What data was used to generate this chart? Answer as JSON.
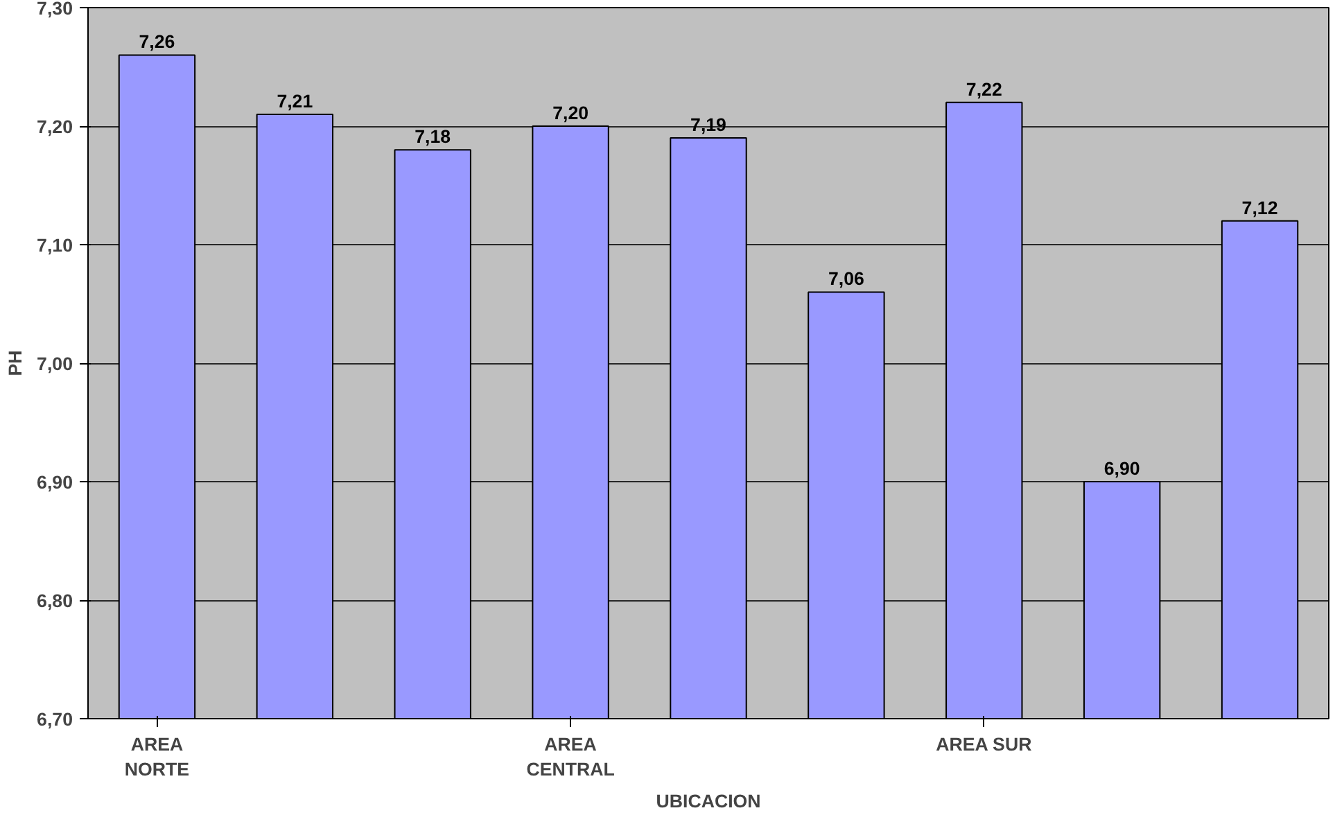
{
  "chart_data": {
    "type": "bar",
    "xlabel": "UBICACION",
    "ylabel": "PH",
    "categories": [
      "AREA NORTE",
      null,
      null,
      "AREA CENTRAL",
      null,
      null,
      "AREA SUR",
      null,
      null
    ],
    "values": [
      7.26,
      7.21,
      7.18,
      7.2,
      7.19,
      7.06,
      7.22,
      6.9,
      7.12
    ],
    "value_labels": [
      "7,26",
      "7,21",
      "7,18",
      "7,20",
      "7,19",
      "7,06",
      "7,22",
      "6,90",
      "7,12"
    ],
    "color": "#9999ff",
    "ylim": [
      6.7,
      7.3
    ],
    "yticks": [
      {
        "value": 6.7,
        "label": "6,70"
      },
      {
        "value": 6.8,
        "label": "6,80"
      },
      {
        "value": 6.9,
        "label": "6,90"
      },
      {
        "value": 7.0,
        "label": "7,00"
      },
      {
        "value": 7.1,
        "label": "7,10"
      },
      {
        "value": 7.2,
        "label": "7,20"
      },
      {
        "value": 7.3,
        "label": "7,30"
      }
    ],
    "grid": "y"
  }
}
